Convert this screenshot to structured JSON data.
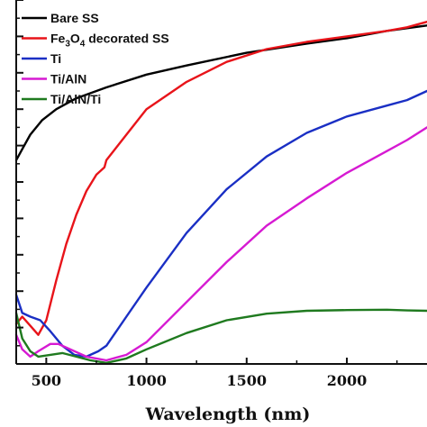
{
  "chart_data": {
    "type": "line",
    "xlabel": "Wavelength (nm)",
    "ylabel": "",
    "xlim": [
      350,
      2400
    ],
    "ylim": [
      0,
      100
    ],
    "x_ticks": [
      500,
      1000,
      1500,
      2000
    ],
    "grid": false,
    "legend_position": "top-left",
    "series": [
      {
        "name": "Bare SS",
        "color": "#000000",
        "points": [
          [
            350,
            56
          ],
          [
            380,
            59
          ],
          [
            420,
            63
          ],
          [
            480,
            67
          ],
          [
            550,
            70
          ],
          [
            650,
            73
          ],
          [
            800,
            76
          ],
          [
            1000,
            79.5
          ],
          [
            1200,
            82
          ],
          [
            1500,
            85.5
          ],
          [
            1800,
            88
          ],
          [
            2000,
            89.5
          ],
          [
            2200,
            91.5
          ],
          [
            2400,
            93
          ]
        ]
      },
      {
        "name": "Fe3O4 decorated SS",
        "color": "#e8141a",
        "points": [
          [
            350,
            11
          ],
          [
            380,
            13
          ],
          [
            420,
            10.5
          ],
          [
            460,
            8
          ],
          [
            500,
            12
          ],
          [
            550,
            23
          ],
          [
            600,
            33
          ],
          [
            650,
            41
          ],
          [
            700,
            47.5
          ],
          [
            750,
            52
          ],
          [
            790,
            54
          ],
          [
            800,
            56
          ],
          [
            900,
            63
          ],
          [
            1000,
            70
          ],
          [
            1200,
            77.5
          ],
          [
            1400,
            83
          ],
          [
            1600,
            86.5
          ],
          [
            1800,
            88.5
          ],
          [
            2000,
            90
          ],
          [
            2200,
            91.5
          ],
          [
            2300,
            92.5
          ],
          [
            2400,
            94
          ]
        ]
      },
      {
        "name": "Ti",
        "color": "#1a2fc4",
        "points": [
          [
            350,
            19
          ],
          [
            380,
            14
          ],
          [
            420,
            13
          ],
          [
            470,
            12
          ],
          [
            520,
            9
          ],
          [
            580,
            5
          ],
          [
            640,
            2.5
          ],
          [
            700,
            2
          ],
          [
            760,
            3.5
          ],
          [
            800,
            5
          ],
          [
            900,
            13
          ],
          [
            1000,
            21
          ],
          [
            1200,
            36
          ],
          [
            1400,
            48
          ],
          [
            1600,
            57
          ],
          [
            1800,
            63.5
          ],
          [
            2000,
            68
          ],
          [
            2200,
            71
          ],
          [
            2300,
            72.5
          ],
          [
            2400,
            75
          ]
        ]
      },
      {
        "name": "Ti/AlN",
        "color": "#d61ad2",
        "points": [
          [
            350,
            8
          ],
          [
            380,
            4
          ],
          [
            420,
            2
          ],
          [
            460,
            3.5
          ],
          [
            520,
            5.5
          ],
          [
            560,
            5.5
          ],
          [
            620,
            4
          ],
          [
            700,
            2
          ],
          [
            800,
            1
          ],
          [
            900,
            2.5
          ],
          [
            1000,
            6
          ],
          [
            1200,
            17
          ],
          [
            1400,
            28
          ],
          [
            1600,
            38
          ],
          [
            1800,
            45.5
          ],
          [
            2000,
            52.5
          ],
          [
            2200,
            58.5
          ],
          [
            2300,
            61.5
          ],
          [
            2400,
            65
          ]
        ]
      },
      {
        "name": "Ti/AlN/Ti",
        "color": "#1f7a1f",
        "points": [
          [
            350,
            14
          ],
          [
            380,
            7
          ],
          [
            420,
            3.5
          ],
          [
            460,
            2
          ],
          [
            520,
            2.5
          ],
          [
            580,
            3
          ],
          [
            650,
            2
          ],
          [
            720,
            1
          ],
          [
            800,
            0.3
          ],
          [
            900,
            1.5
          ],
          [
            1000,
            4
          ],
          [
            1200,
            8.5
          ],
          [
            1400,
            12
          ],
          [
            1600,
            13.8
          ],
          [
            1800,
            14.6
          ],
          [
            2000,
            14.8
          ],
          [
            2200,
            14.9
          ],
          [
            2300,
            14.7
          ],
          [
            2400,
            14.6
          ]
        ]
      }
    ]
  }
}
